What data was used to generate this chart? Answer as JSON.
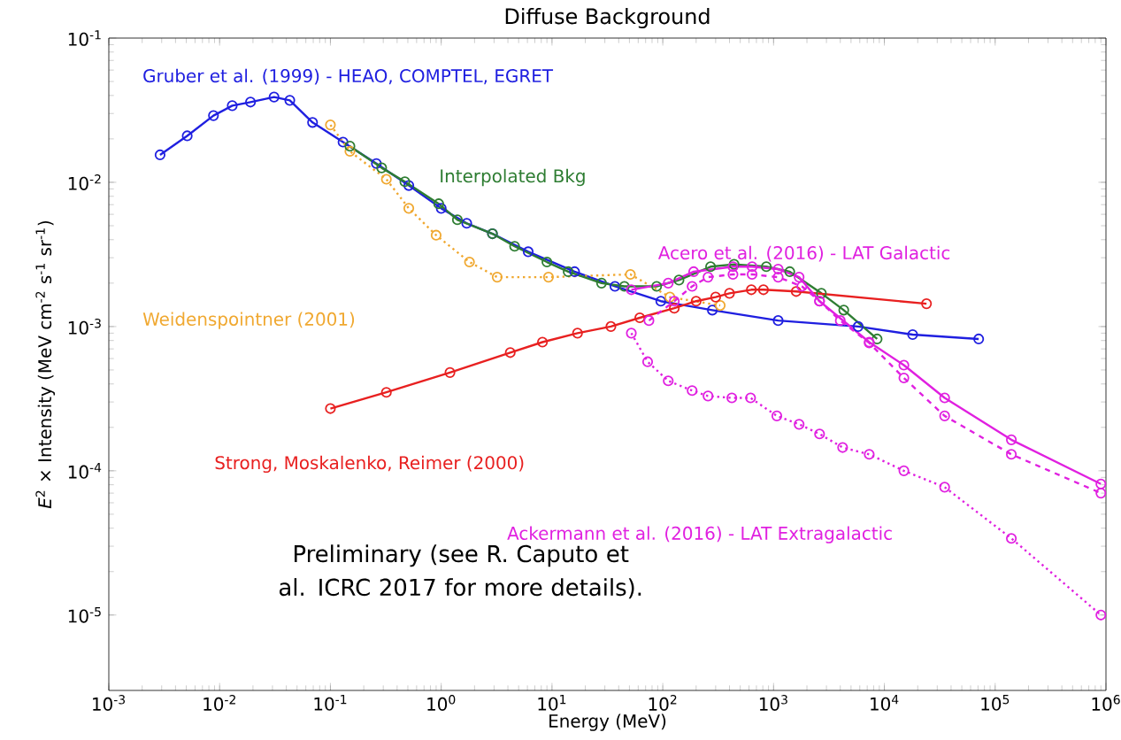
{
  "chart_data": {
    "type": "line",
    "title": "Diffuse Background",
    "xlabel": "Energy (MeV)",
    "ylabel": "*E*$^{2}$ × Intensity (MeV cm$^{-2}$ s$^{-1}$ sr$^{-1}$)",
    "log": "xy",
    "marker": "circle",
    "xlim": [
      0.001,
      1000000
    ],
    "ylim": [
      3e-06,
      0.1
    ],
    "xticks": [
      {
        "value": 0.001,
        "label": "10$^{-3}$"
      },
      {
        "value": 0.01,
        "label": "10$^{-2}$"
      },
      {
        "value": 0.1,
        "label": "10$^{-1}$"
      },
      {
        "value": 1,
        "label": "10$^{0}$"
      },
      {
        "value": 10,
        "label": "10$^{1}$"
      },
      {
        "value": 100,
        "label": "10$^{2}$"
      },
      {
        "value": 1000,
        "label": "10$^{3}$"
      },
      {
        "value": 10000,
        "label": "10$^{4}$"
      },
      {
        "value": 100000,
        "label": "10$^{5}$"
      },
      {
        "value": 1000000,
        "label": "10$^{6}$"
      }
    ],
    "yticks": [
      {
        "value": 1e-05,
        "label": "10$^{-5}$"
      },
      {
        "value": 0.0001,
        "label": "10$^{-4}$"
      },
      {
        "value": 0.001,
        "label": "10$^{-3}$"
      },
      {
        "value": 0.01,
        "label": "10$^{-2}$"
      },
      {
        "value": 0.1,
        "label": "10$^{-1}$"
      }
    ],
    "annotations": [
      "Preliminary (see R. Caputo et al. ICRC 2017 for more details)."
    ],
    "series": [
      {
        "name": "Gruber et al. (1999) - HEAO, COMPTEL, EGRET",
        "color": "#1f1fe0",
        "line_style": "solid",
        "x": [
          0.0029,
          0.0051,
          0.0088,
          0.013,
          0.019,
          0.031,
          0.043,
          0.069,
          0.13,
          0.26,
          0.51,
          1.0,
          1.7,
          2.9,
          6.1,
          16,
          37,
          96,
          280,
          1100,
          5800,
          18000,
          71000
        ],
        "values": [
          0.0155,
          0.021,
          0.029,
          0.034,
          0.036,
          0.039,
          0.037,
          0.026,
          0.019,
          0.0135,
          0.0095,
          0.0066,
          0.0052,
          0.0044,
          0.0033,
          0.0024,
          0.0019,
          0.0015,
          0.0013,
          0.0011,
          0.001,
          0.00088,
          0.00082
        ]
      },
      {
        "name": "Weidenspointner (2001)",
        "color": "#f0a830",
        "line_style": "dotted",
        "x": [
          0.1,
          0.15,
          0.32,
          0.51,
          0.9,
          1.8,
          3.2,
          9.3,
          51,
          116,
          330
        ],
        "values": [
          0.025,
          0.0164,
          0.0105,
          0.0066,
          0.0043,
          0.0028,
          0.0022,
          0.0022,
          0.0023,
          0.0016,
          0.0014
        ]
      },
      {
        "name": "Interpolated Bkg",
        "color": "#2e7d32",
        "line_style": "solid",
        "x": [
          0.15,
          0.29,
          0.47,
          0.95,
          1.4,
          2.9,
          4.6,
          9.0,
          14,
          28,
          45,
          88,
          140,
          270,
          440,
          860,
          1400,
          2700,
          4300,
          8600
        ],
        "values": [
          0.0178,
          0.0126,
          0.0101,
          0.0071,
          0.0055,
          0.0044,
          0.0036,
          0.0028,
          0.0024,
          0.002,
          0.0019,
          0.0019,
          0.0021,
          0.0026,
          0.0027,
          0.0026,
          0.0024,
          0.0017,
          0.0013,
          0.00082
        ]
      },
      {
        "name": "Strong, Moskalenko, Reimer (2000)",
        "color": "#e82020",
        "line_style": "solid",
        "x": [
          0.1,
          0.32,
          1.2,
          4.2,
          8.2,
          17,
          34,
          62,
          127,
          200,
          300,
          400,
          630,
          810,
          1600,
          24000
        ],
        "values": [
          0.00027,
          0.00035,
          0.00048,
          0.00066,
          0.00078,
          0.0009,
          0.001,
          0.00115,
          0.00134,
          0.0015,
          0.0016,
          0.0017,
          0.0018,
          0.0018,
          0.00175,
          0.00144
        ]
      },
      {
        "name": "Acero et al. (2016) - LAT Galactic",
        "color": "#e020e0",
        "line_style": "solid",
        "x": [
          52,
          112,
          190,
          430,
          640,
          1100,
          1700,
          2600,
          7300,
          15000,
          35000,
          140000,
          900000
        ],
        "values": [
          0.0018,
          0.002,
          0.0024,
          0.0026,
          0.0026,
          0.0025,
          0.0022,
          0.0015,
          0.00078,
          0.00054,
          0.00032,
          0.000164,
          8.1e-05
        ]
      },
      {
        "color": "#e020e0",
        "line_style": "dashed",
        "x": [
          75,
          127,
          184,
          256,
          430,
          640,
          1100,
          1800,
          2600,
          4000,
          7300,
          15000,
          35000,
          140000,
          900000
        ],
        "values": [
          0.0011,
          0.0015,
          0.0019,
          0.0022,
          0.0023,
          0.0023,
          0.0022,
          0.0019,
          0.0015,
          0.0011,
          0.00077,
          0.00044,
          0.00024,
          0.00013,
          7e-05
        ]
      },
      {
        "name": "Ackermann et al. (2016) - LAT Extragalactic",
        "color": "#e020e0",
        "line_style": "dotted",
        "x": [
          52,
          73,
          112,
          184,
          256,
          420,
          620,
          1070,
          1700,
          2600,
          4200,
          7300,
          15000,
          35000,
          140000,
          900000
        ],
        "values": [
          0.0009,
          0.00057,
          0.00042,
          0.00036,
          0.00033,
          0.00032,
          0.00032,
          0.00024,
          0.00021,
          0.00018,
          0.000145,
          0.00013,
          0.0001,
          7.7e-05,
          3.4e-05,
          1e-05
        ]
      }
    ]
  }
}
